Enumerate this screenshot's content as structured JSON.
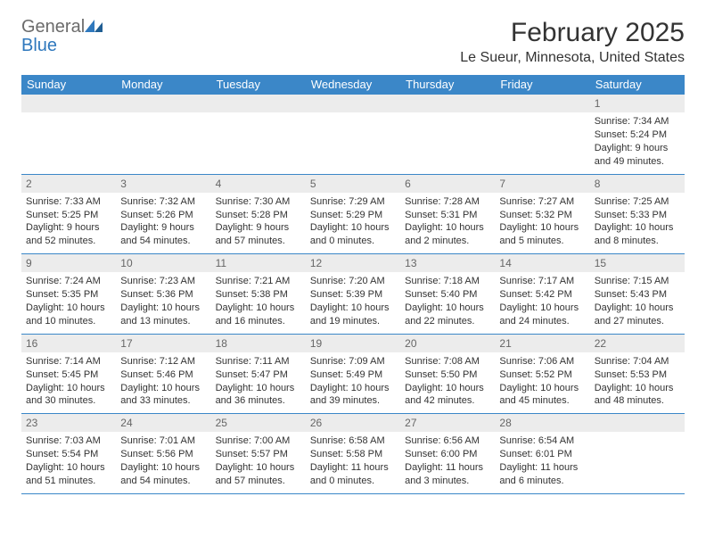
{
  "brand": {
    "line1": "General",
    "line2": "Blue",
    "general_color": "#6b6b6b",
    "blue_color": "#2f78bd"
  },
  "title": "February 2025",
  "location": "Le Sueur, Minnesota, United States",
  "colors": {
    "header_bg": "#3b87c8",
    "header_fg": "#ffffff",
    "daynum_bg": "#ececec",
    "daynum_fg": "#666666",
    "rule": "#3b87c8",
    "body_text": "#333333",
    "page_bg": "#ffffff"
  },
  "typography": {
    "title_fontsize": 30,
    "location_fontsize": 16,
    "dow_fontsize": 13,
    "daynum_fontsize": 12,
    "body_fontsize": 11
  },
  "layout": {
    "columns": 7,
    "rows": 5
  },
  "dow": [
    "Sunday",
    "Monday",
    "Tuesday",
    "Wednesday",
    "Thursday",
    "Friday",
    "Saturday"
  ],
  "weeks": [
    [
      {
        "n": "",
        "text": ""
      },
      {
        "n": "",
        "text": ""
      },
      {
        "n": "",
        "text": ""
      },
      {
        "n": "",
        "text": ""
      },
      {
        "n": "",
        "text": ""
      },
      {
        "n": "",
        "text": ""
      },
      {
        "n": "1",
        "text": "Sunrise: 7:34 AM\nSunset: 5:24 PM\nDaylight: 9 hours and 49 minutes."
      }
    ],
    [
      {
        "n": "2",
        "text": "Sunrise: 7:33 AM\nSunset: 5:25 PM\nDaylight: 9 hours and 52 minutes."
      },
      {
        "n": "3",
        "text": "Sunrise: 7:32 AM\nSunset: 5:26 PM\nDaylight: 9 hours and 54 minutes."
      },
      {
        "n": "4",
        "text": "Sunrise: 7:30 AM\nSunset: 5:28 PM\nDaylight: 9 hours and 57 minutes."
      },
      {
        "n": "5",
        "text": "Sunrise: 7:29 AM\nSunset: 5:29 PM\nDaylight: 10 hours and 0 minutes."
      },
      {
        "n": "6",
        "text": "Sunrise: 7:28 AM\nSunset: 5:31 PM\nDaylight: 10 hours and 2 minutes."
      },
      {
        "n": "7",
        "text": "Sunrise: 7:27 AM\nSunset: 5:32 PM\nDaylight: 10 hours and 5 minutes."
      },
      {
        "n": "8",
        "text": "Sunrise: 7:25 AM\nSunset: 5:33 PM\nDaylight: 10 hours and 8 minutes."
      }
    ],
    [
      {
        "n": "9",
        "text": "Sunrise: 7:24 AM\nSunset: 5:35 PM\nDaylight: 10 hours and 10 minutes."
      },
      {
        "n": "10",
        "text": "Sunrise: 7:23 AM\nSunset: 5:36 PM\nDaylight: 10 hours and 13 minutes."
      },
      {
        "n": "11",
        "text": "Sunrise: 7:21 AM\nSunset: 5:38 PM\nDaylight: 10 hours and 16 minutes."
      },
      {
        "n": "12",
        "text": "Sunrise: 7:20 AM\nSunset: 5:39 PM\nDaylight: 10 hours and 19 minutes."
      },
      {
        "n": "13",
        "text": "Sunrise: 7:18 AM\nSunset: 5:40 PM\nDaylight: 10 hours and 22 minutes."
      },
      {
        "n": "14",
        "text": "Sunrise: 7:17 AM\nSunset: 5:42 PM\nDaylight: 10 hours and 24 minutes."
      },
      {
        "n": "15",
        "text": "Sunrise: 7:15 AM\nSunset: 5:43 PM\nDaylight: 10 hours and 27 minutes."
      }
    ],
    [
      {
        "n": "16",
        "text": "Sunrise: 7:14 AM\nSunset: 5:45 PM\nDaylight: 10 hours and 30 minutes."
      },
      {
        "n": "17",
        "text": "Sunrise: 7:12 AM\nSunset: 5:46 PM\nDaylight: 10 hours and 33 minutes."
      },
      {
        "n": "18",
        "text": "Sunrise: 7:11 AM\nSunset: 5:47 PM\nDaylight: 10 hours and 36 minutes."
      },
      {
        "n": "19",
        "text": "Sunrise: 7:09 AM\nSunset: 5:49 PM\nDaylight: 10 hours and 39 minutes."
      },
      {
        "n": "20",
        "text": "Sunrise: 7:08 AM\nSunset: 5:50 PM\nDaylight: 10 hours and 42 minutes."
      },
      {
        "n": "21",
        "text": "Sunrise: 7:06 AM\nSunset: 5:52 PM\nDaylight: 10 hours and 45 minutes."
      },
      {
        "n": "22",
        "text": "Sunrise: 7:04 AM\nSunset: 5:53 PM\nDaylight: 10 hours and 48 minutes."
      }
    ],
    [
      {
        "n": "23",
        "text": "Sunrise: 7:03 AM\nSunset: 5:54 PM\nDaylight: 10 hours and 51 minutes."
      },
      {
        "n": "24",
        "text": "Sunrise: 7:01 AM\nSunset: 5:56 PM\nDaylight: 10 hours and 54 minutes."
      },
      {
        "n": "25",
        "text": "Sunrise: 7:00 AM\nSunset: 5:57 PM\nDaylight: 10 hours and 57 minutes."
      },
      {
        "n": "26",
        "text": "Sunrise: 6:58 AM\nSunset: 5:58 PM\nDaylight: 11 hours and 0 minutes."
      },
      {
        "n": "27",
        "text": "Sunrise: 6:56 AM\nSunset: 6:00 PM\nDaylight: 11 hours and 3 minutes."
      },
      {
        "n": "28",
        "text": "Sunrise: 6:54 AM\nSunset: 6:01 PM\nDaylight: 11 hours and 6 minutes."
      },
      {
        "n": "",
        "text": ""
      }
    ]
  ]
}
